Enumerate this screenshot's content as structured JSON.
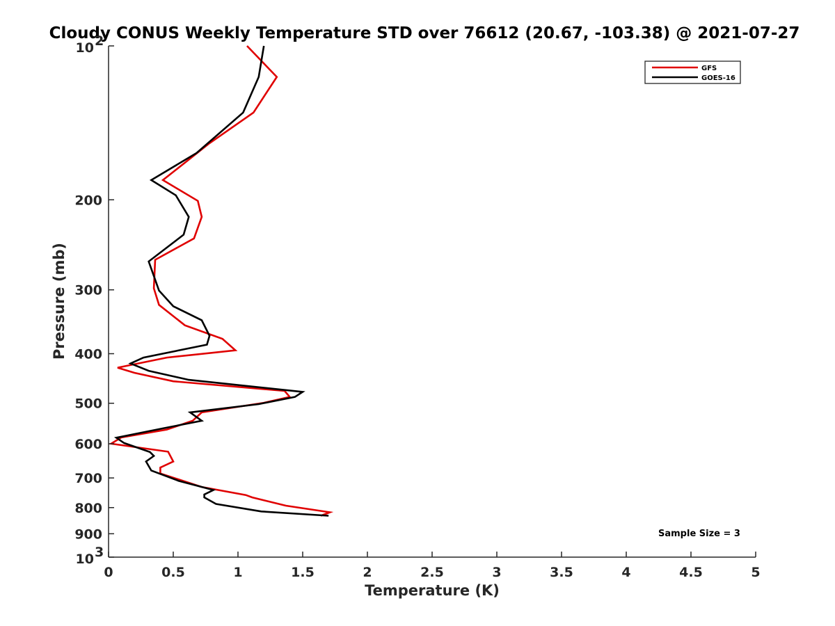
{
  "chart_data": {
    "type": "line",
    "title": "Cloudy CONUS Weekly Temperature STD over 76612 (20.67, -103.38) @ 2021-07-27",
    "xlabel": "Temperature (K)",
    "ylabel": "Pressure (mb)",
    "xlim": [
      0,
      5
    ],
    "ylim": [
      100,
      1000
    ],
    "y_scale": "log",
    "y_reversed": true,
    "grid": false,
    "legend_position": "top-right",
    "x_ticks": [
      "0",
      "0.5",
      "1",
      "1.5",
      "2",
      "2.5",
      "3",
      "3.5",
      "4",
      "4.5",
      "5"
    ],
    "y_ticks": [
      {
        "value": 100,
        "base": "10",
        "exp": "2"
      },
      {
        "value": 200,
        "label": "200"
      },
      {
        "value": 300,
        "label": "300"
      },
      {
        "value": 400,
        "label": "400"
      },
      {
        "value": 500,
        "label": "500"
      },
      {
        "value": 600,
        "label": "600"
      },
      {
        "value": 700,
        "label": "700"
      },
      {
        "value": 800,
        "label": "800"
      },
      {
        "value": 900,
        "label": "900"
      },
      {
        "value": 1000,
        "base": "10",
        "exp": "3"
      }
    ],
    "series": [
      {
        "name": "GFS",
        "color": "#e00000",
        "points": [
          [
            1.07,
            100
          ],
          [
            1.3,
            115
          ],
          [
            1.12,
            135
          ],
          [
            0.78,
            155
          ],
          [
            0.42,
            183
          ],
          [
            0.69,
            201
          ],
          [
            0.72,
            216
          ],
          [
            0.66,
            238
          ],
          [
            0.36,
            262
          ],
          [
            0.35,
            298
          ],
          [
            0.39,
            321
          ],
          [
            0.59,
            352
          ],
          [
            0.88,
            374
          ],
          [
            0.98,
            394
          ],
          [
            0.45,
            407
          ],
          [
            0.07,
            426
          ],
          [
            0.2,
            436
          ],
          [
            0.5,
            453
          ],
          [
            1.36,
            473
          ],
          [
            1.4,
            486
          ],
          [
            1.2,
            499
          ],
          [
            0.72,
            521
          ],
          [
            0.65,
            541
          ],
          [
            0.45,
            563
          ],
          [
            0.1,
            583
          ],
          [
            0.02,
            600
          ],
          [
            0.46,
            622
          ],
          [
            0.5,
            650
          ],
          [
            0.4,
            668
          ],
          [
            0.4,
            686
          ],
          [
            0.72,
            729
          ],
          [
            1.06,
            756
          ],
          [
            1.11,
            764
          ],
          [
            1.37,
            793
          ],
          [
            1.71,
            817
          ],
          [
            1.64,
            830
          ]
        ]
      },
      {
        "name": "GOES-16",
        "color": "#000000",
        "points": [
          [
            1.2,
            100
          ],
          [
            1.16,
            115
          ],
          [
            1.04,
            135
          ],
          [
            0.68,
            162
          ],
          [
            0.33,
            183
          ],
          [
            0.52,
            196
          ],
          [
            0.62,
            216
          ],
          [
            0.58,
            234
          ],
          [
            0.31,
            264
          ],
          [
            0.39,
            301
          ],
          [
            0.5,
            323
          ],
          [
            0.72,
            344
          ],
          [
            0.78,
            369
          ],
          [
            0.76,
            384
          ],
          [
            0.27,
            407
          ],
          [
            0.17,
            418
          ],
          [
            0.31,
            432
          ],
          [
            0.62,
            450
          ],
          [
            1.5,
            475
          ],
          [
            1.44,
            486
          ],
          [
            1.16,
            502
          ],
          [
            0.63,
            521
          ],
          [
            0.72,
            541
          ],
          [
            0.42,
            560
          ],
          [
            0.06,
            584
          ],
          [
            0.12,
            598
          ],
          [
            0.32,
            623
          ],
          [
            0.35,
            634
          ],
          [
            0.29,
            650
          ],
          [
            0.33,
            677
          ],
          [
            0.54,
            709
          ],
          [
            0.81,
            739
          ],
          [
            0.74,
            754
          ],
          [
            0.74,
            764
          ],
          [
            0.83,
            787
          ],
          [
            1.18,
            814
          ],
          [
            1.7,
            830
          ]
        ]
      }
    ],
    "annotation": "Sample Size = 3"
  }
}
